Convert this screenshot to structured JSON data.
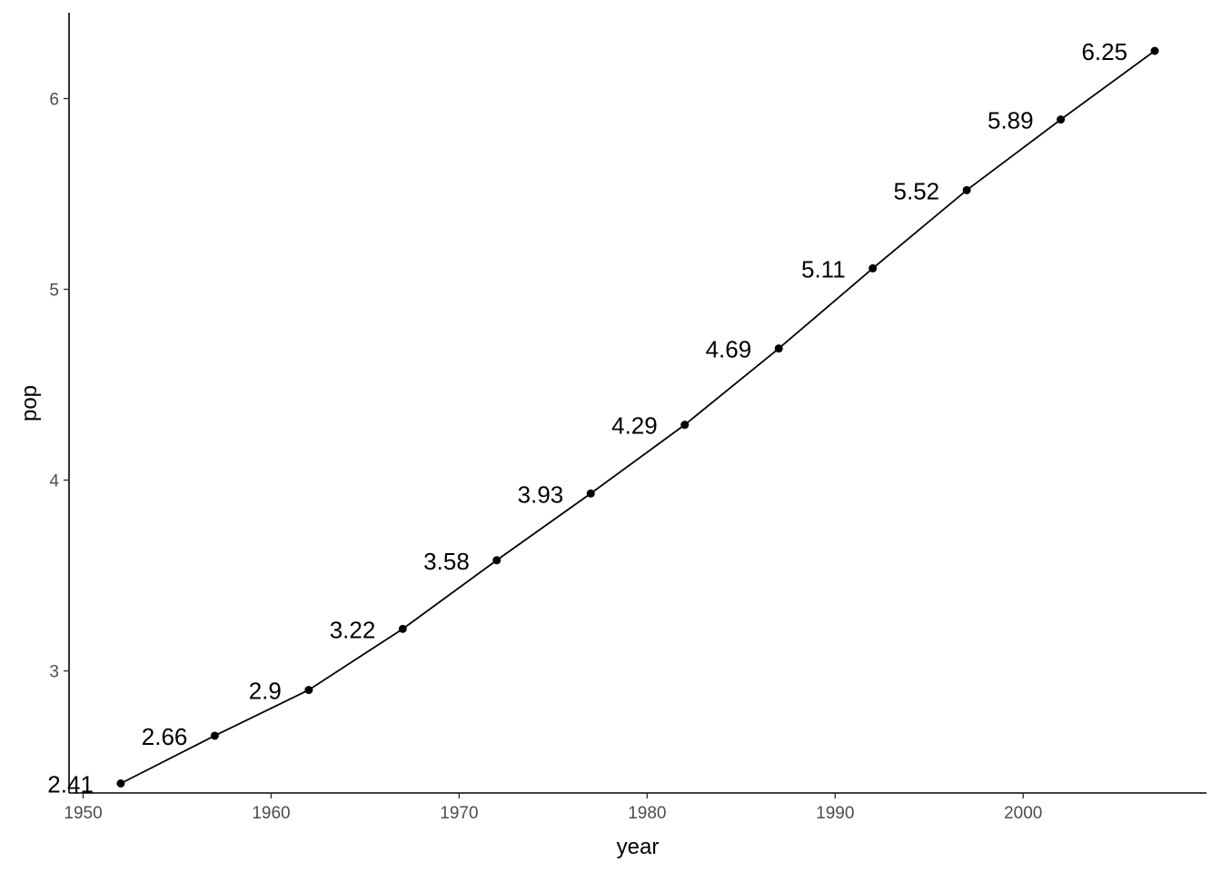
{
  "chart_data": {
    "type": "line",
    "title": "",
    "xlabel": "year",
    "ylabel": "pop",
    "x": [
      1952,
      1957,
      1962,
      1967,
      1972,
      1977,
      1982,
      1987,
      1992,
      1997,
      2002,
      2007
    ],
    "series": [
      {
        "values": [
          2.41,
          2.66,
          2.9,
          3.22,
          3.58,
          3.93,
          4.29,
          4.69,
          5.11,
          5.52,
          5.89,
          6.25
        ],
        "data_labels": [
          "2.41",
          "2.66",
          "2.9",
          "3.22",
          "3.58",
          "3.93",
          "4.29",
          "4.69",
          "5.11",
          "5.52",
          "5.89",
          "6.25"
        ],
        "color": "#000000"
      }
    ],
    "xlim": [
      1949.25,
      2009.75
    ],
    "ylim": [
      2.36,
      6.45
    ],
    "x_ticks": [
      1950,
      1960,
      1970,
      1980,
      1990,
      2000
    ],
    "x_tick_labels": [
      "1950",
      "1960",
      "1970",
      "1980",
      "1990",
      "2000"
    ],
    "y_ticks": [
      3,
      4,
      5,
      6
    ],
    "y_tick_labels": [
      "3",
      "4",
      "5",
      "6"
    ],
    "grid": false,
    "legend": "none"
  }
}
